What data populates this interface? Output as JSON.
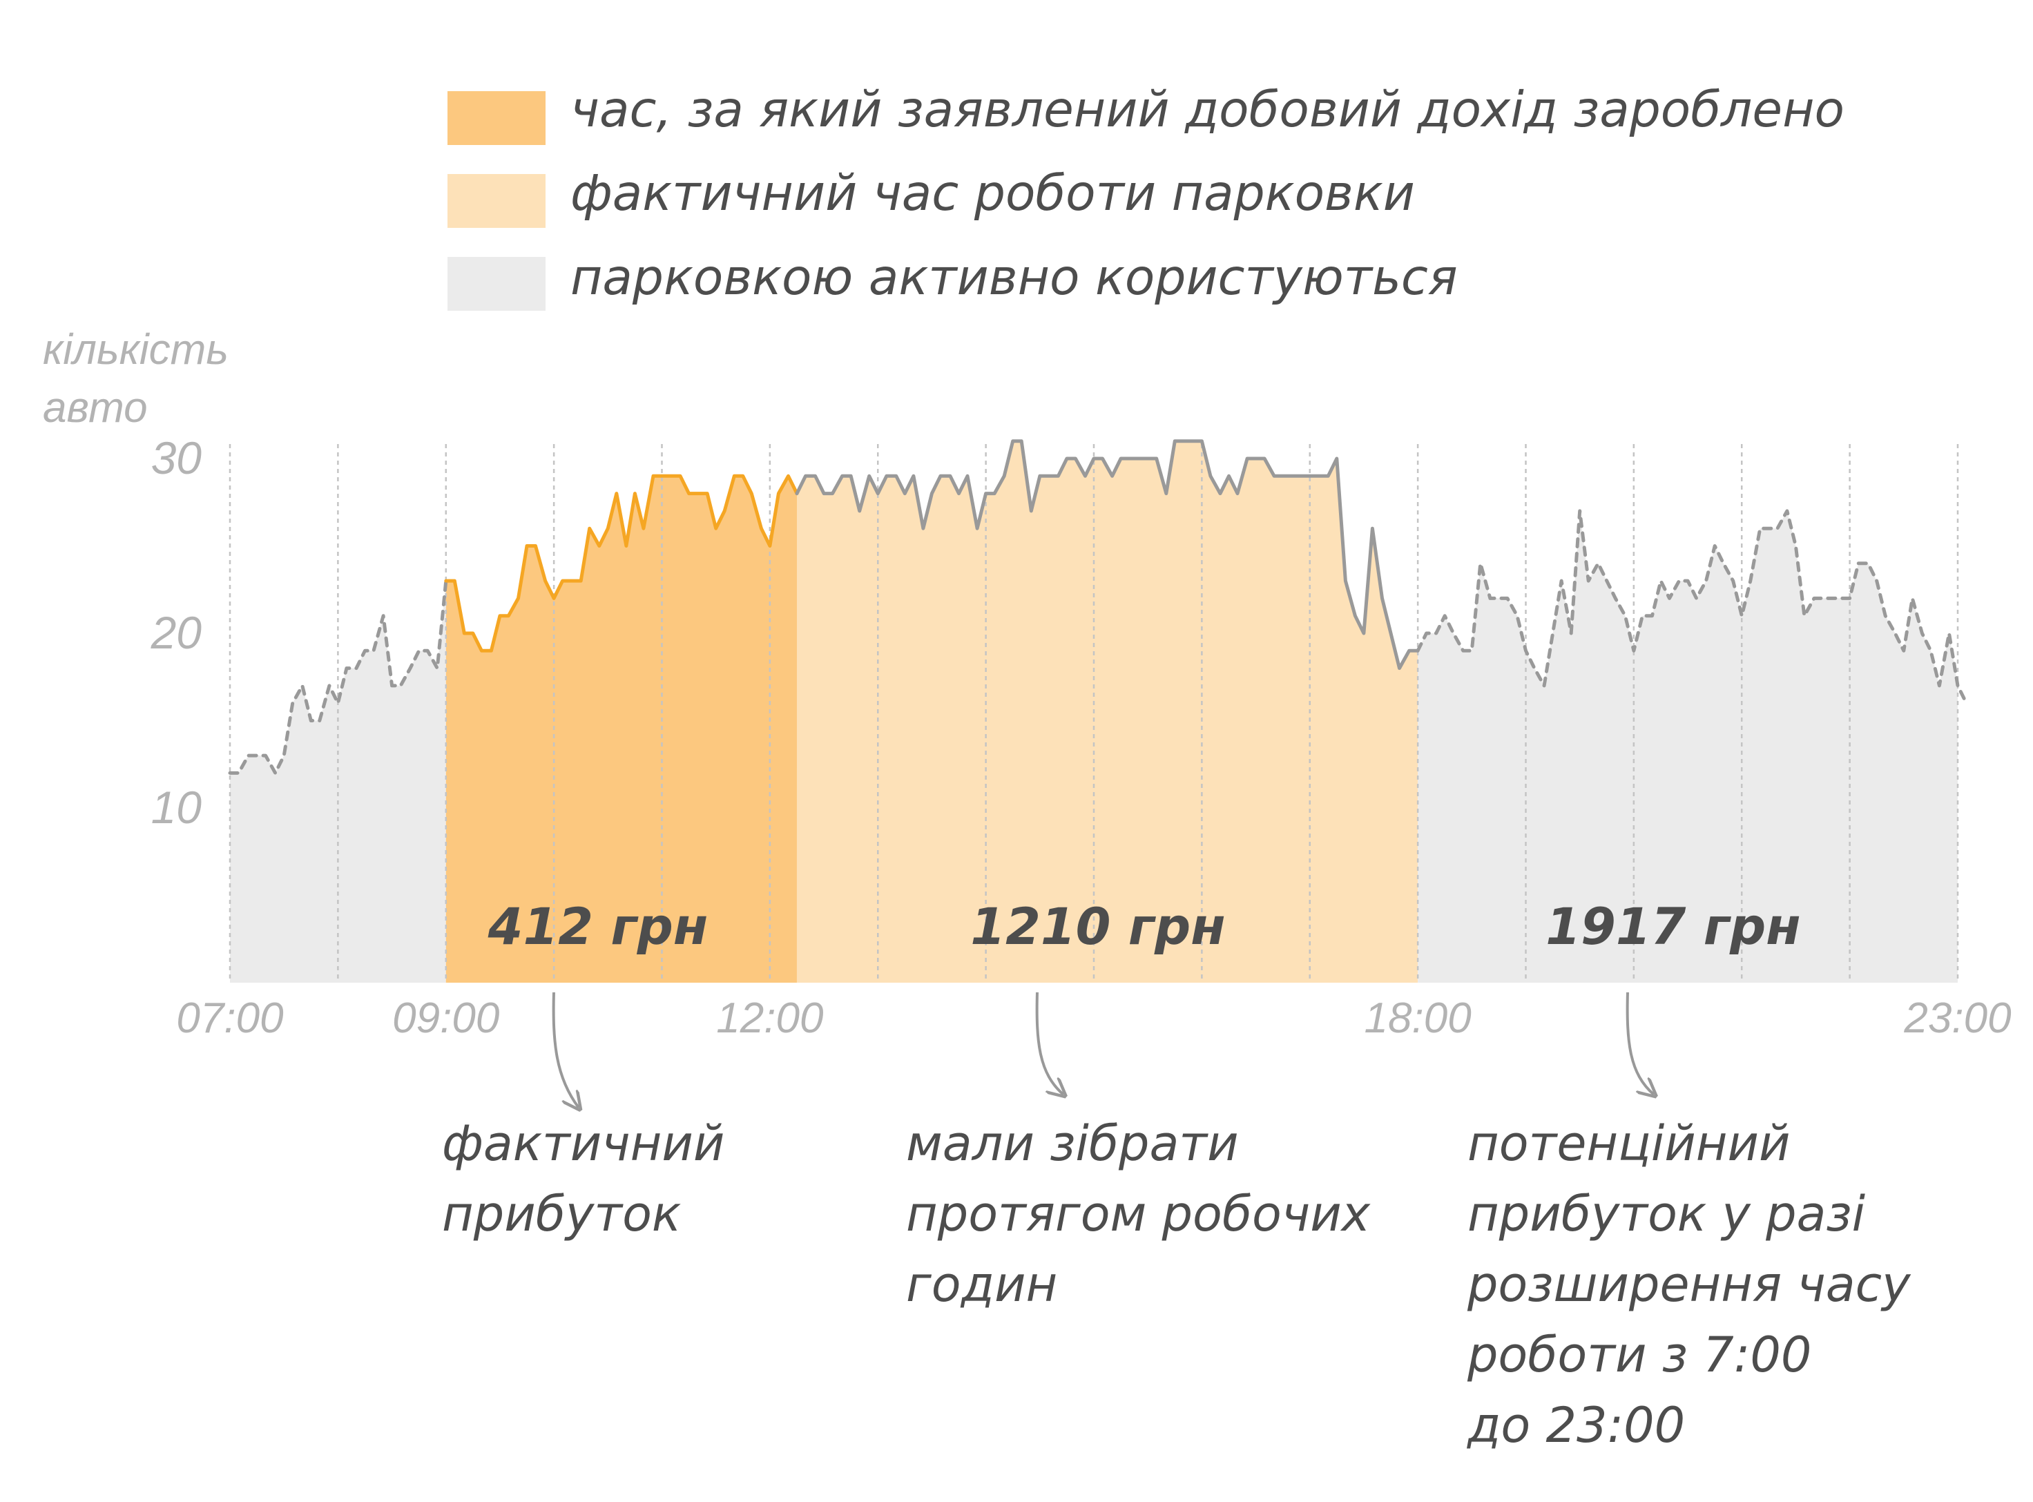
{
  "legend": [
    {
      "label": "час, за який заявлений добовий дохід зароблено",
      "color": "#fcc87f"
    },
    {
      "label": "фактичний час роботи парковки",
      "color": "#fde1b8"
    },
    {
      "label": "парковкою активно користуються",
      "color": "#ebebeb"
    }
  ],
  "chart_data": {
    "type": "area",
    "ylabel": "кількість авто",
    "yticks": [
      10,
      20,
      30
    ],
    "xticks": [
      "07:00",
      "09:00",
      "12:00",
      "18:00",
      "23:00"
    ],
    "ylim": [
      0,
      31
    ],
    "xlim": [
      7,
      23
    ],
    "grid": "vertical dotted",
    "legend_position": "top",
    "regions": [
      {
        "label": "час, за який заявлений добовий дохід зароблено",
        "from": 9.0,
        "to": 12.25,
        "amount": "412 грн"
      },
      {
        "label": "фактичний час роботи парковки",
        "from": 12.25,
        "to": 18.0,
        "amount": "1210 грн"
      },
      {
        "label": "парковкою активно користуються",
        "from": 18.0,
        "to": 23.0,
        "amount": "1917 грн"
      }
    ],
    "series": [
      {
        "style": "dashed",
        "color": "#999999",
        "points": [
          [
            7.0,
            12
          ],
          [
            7.08,
            12
          ],
          [
            7.17,
            13
          ],
          [
            7.25,
            13
          ],
          [
            7.33,
            13
          ],
          [
            7.42,
            12
          ],
          [
            7.5,
            13
          ],
          [
            7.58,
            16
          ],
          [
            7.67,
            17
          ],
          [
            7.75,
            15
          ],
          [
            7.83,
            15
          ],
          [
            7.92,
            17
          ],
          [
            8.0,
            16
          ],
          [
            8.08,
            18
          ],
          [
            8.17,
            18
          ],
          [
            8.25,
            19
          ],
          [
            8.33,
            19
          ],
          [
            8.42,
            21
          ],
          [
            8.5,
            17
          ],
          [
            8.58,
            17
          ],
          [
            8.67,
            18
          ],
          [
            8.75,
            19
          ],
          [
            8.83,
            19
          ],
          [
            8.92,
            18
          ],
          [
            9.0,
            23
          ]
        ]
      },
      {
        "style": "solid",
        "color": "#f5a623",
        "points": [
          [
            9.0,
            23
          ],
          [
            9.08,
            23
          ],
          [
            9.17,
            20
          ],
          [
            9.25,
            20
          ],
          [
            9.33,
            19
          ],
          [
            9.42,
            19
          ],
          [
            9.5,
            21
          ],
          [
            9.58,
            21
          ],
          [
            9.67,
            22
          ],
          [
            9.75,
            25
          ],
          [
            9.83,
            25
          ],
          [
            9.92,
            23
          ],
          [
            10.0,
            22
          ],
          [
            10.08,
            23
          ],
          [
            10.17,
            23
          ],
          [
            10.25,
            23
          ],
          [
            10.33,
            26
          ],
          [
            10.42,
            25
          ],
          [
            10.5,
            26
          ],
          [
            10.58,
            28
          ],
          [
            10.67,
            25
          ],
          [
            10.75,
            28
          ],
          [
            10.83,
            26
          ],
          [
            10.92,
            29
          ],
          [
            11.0,
            29
          ],
          [
            11.08,
            29
          ],
          [
            11.17,
            29
          ],
          [
            11.25,
            28
          ],
          [
            11.33,
            28
          ],
          [
            11.42,
            28
          ],
          [
            11.5,
            26
          ],
          [
            11.58,
            27
          ],
          [
            11.67,
            29
          ],
          [
            11.75,
            29
          ],
          [
            11.83,
            28
          ],
          [
            11.92,
            26
          ],
          [
            12.0,
            25
          ],
          [
            12.08,
            28
          ],
          [
            12.17,
            29
          ],
          [
            12.25,
            28
          ]
        ]
      },
      {
        "style": "solid",
        "color": "#999999",
        "points": [
          [
            12.25,
            28
          ],
          [
            12.33,
            29
          ],
          [
            12.42,
            29
          ],
          [
            12.5,
            28
          ],
          [
            12.58,
            28
          ],
          [
            12.67,
            29
          ],
          [
            12.75,
            29
          ],
          [
            12.83,
            27
          ],
          [
            12.92,
            29
          ],
          [
            13.0,
            28
          ],
          [
            13.08,
            29
          ],
          [
            13.17,
            29
          ],
          [
            13.25,
            28
          ],
          [
            13.33,
            29
          ],
          [
            13.42,
            26
          ],
          [
            13.5,
            28
          ],
          [
            13.58,
            29
          ],
          [
            13.67,
            29
          ],
          [
            13.75,
            28
          ],
          [
            13.83,
            29
          ],
          [
            13.92,
            26
          ],
          [
            14.0,
            28
          ],
          [
            14.08,
            28
          ],
          [
            14.17,
            29
          ],
          [
            14.25,
            31
          ],
          [
            14.33,
            31
          ],
          [
            14.42,
            27
          ],
          [
            14.5,
            29
          ],
          [
            14.58,
            29
          ],
          [
            14.67,
            29
          ],
          [
            14.75,
            30
          ],
          [
            14.83,
            30
          ],
          [
            14.92,
            29
          ],
          [
            15.0,
            30
          ],
          [
            15.08,
            30
          ],
          [
            15.17,
            29
          ],
          [
            15.25,
            30
          ],
          [
            15.33,
            30
          ],
          [
            15.42,
            30
          ],
          [
            15.5,
            30
          ],
          [
            15.58,
            30
          ],
          [
            15.67,
            28
          ],
          [
            15.75,
            31
          ],
          [
            15.83,
            31
          ],
          [
            15.92,
            31
          ],
          [
            16.0,
            31
          ],
          [
            16.08,
            29
          ],
          [
            16.17,
            28
          ],
          [
            16.25,
            29
          ],
          [
            16.33,
            28
          ],
          [
            16.42,
            30
          ],
          [
            16.5,
            30
          ],
          [
            16.58,
            30
          ],
          [
            16.67,
            29
          ],
          [
            16.75,
            29
          ],
          [
            16.83,
            29
          ],
          [
            16.92,
            29
          ],
          [
            17.0,
            29
          ],
          [
            17.08,
            29
          ],
          [
            17.17,
            29
          ],
          [
            17.25,
            30
          ],
          [
            17.33,
            23
          ],
          [
            17.42,
            21
          ],
          [
            17.5,
            20
          ],
          [
            17.58,
            26
          ],
          [
            17.67,
            22
          ],
          [
            17.75,
            20
          ],
          [
            17.83,
            18
          ],
          [
            17.92,
            19
          ],
          [
            18.0,
            19
          ]
        ]
      },
      {
        "style": "dashed",
        "color": "#999999",
        "points": [
          [
            18.0,
            19
          ],
          [
            18.08,
            20
          ],
          [
            18.17,
            20
          ],
          [
            18.25,
            21
          ],
          [
            18.33,
            20
          ],
          [
            18.42,
            19
          ],
          [
            18.5,
            19
          ],
          [
            18.58,
            24
          ],
          [
            18.67,
            22
          ],
          [
            18.75,
            22
          ],
          [
            18.83,
            22
          ],
          [
            18.92,
            21
          ],
          [
            19.0,
            19
          ],
          [
            19.08,
            18
          ],
          [
            19.17,
            17
          ],
          [
            19.25,
            20
          ],
          [
            19.33,
            23
          ],
          [
            19.42,
            20
          ],
          [
            19.5,
            27
          ],
          [
            19.58,
            23
          ],
          [
            19.67,
            24
          ],
          [
            19.75,
            23
          ],
          [
            19.83,
            22
          ],
          [
            19.92,
            21
          ],
          [
            20.0,
            19
          ],
          [
            20.08,
            21
          ],
          [
            20.17,
            21
          ],
          [
            20.25,
            23
          ],
          [
            20.33,
            22
          ],
          [
            20.42,
            23
          ],
          [
            20.5,
            23
          ],
          [
            20.58,
            22
          ],
          [
            20.67,
            23
          ],
          [
            20.75,
            25
          ],
          [
            20.83,
            24
          ],
          [
            20.92,
            23
          ],
          [
            21.0,
            21
          ],
          [
            21.08,
            23
          ],
          [
            21.17,
            26
          ],
          [
            21.25,
            26
          ],
          [
            21.33,
            26
          ],
          [
            21.42,
            27
          ],
          [
            21.5,
            25
          ],
          [
            21.58,
            21
          ],
          [
            21.67,
            22
          ],
          [
            21.75,
            22
          ],
          [
            21.83,
            22
          ],
          [
            21.92,
            22
          ],
          [
            22.0,
            22
          ],
          [
            22.08,
            24
          ],
          [
            22.17,
            24
          ],
          [
            22.25,
            23
          ],
          [
            22.33,
            21
          ],
          [
            22.42,
            20
          ],
          [
            22.5,
            19
          ],
          [
            22.58,
            22
          ],
          [
            22.67,
            20
          ],
          [
            22.75,
            19
          ],
          [
            22.83,
            17
          ],
          [
            22.92,
            20
          ],
          [
            23.0,
            17
          ],
          [
            23.08,
            16
          ]
        ]
      }
    ]
  },
  "amounts": {
    "first": "412 грн",
    "second": "1210 грн",
    "third": "1917 грн"
  },
  "notes": {
    "first": [
      "фактичний",
      "прибуток"
    ],
    "second": [
      "мали зібрати",
      "протягом робочих",
      "годин"
    ],
    "third": [
      "потенційний",
      "прибуток у разі",
      "розширення часу",
      "роботи з 7:00",
      "до 23:00"
    ]
  }
}
